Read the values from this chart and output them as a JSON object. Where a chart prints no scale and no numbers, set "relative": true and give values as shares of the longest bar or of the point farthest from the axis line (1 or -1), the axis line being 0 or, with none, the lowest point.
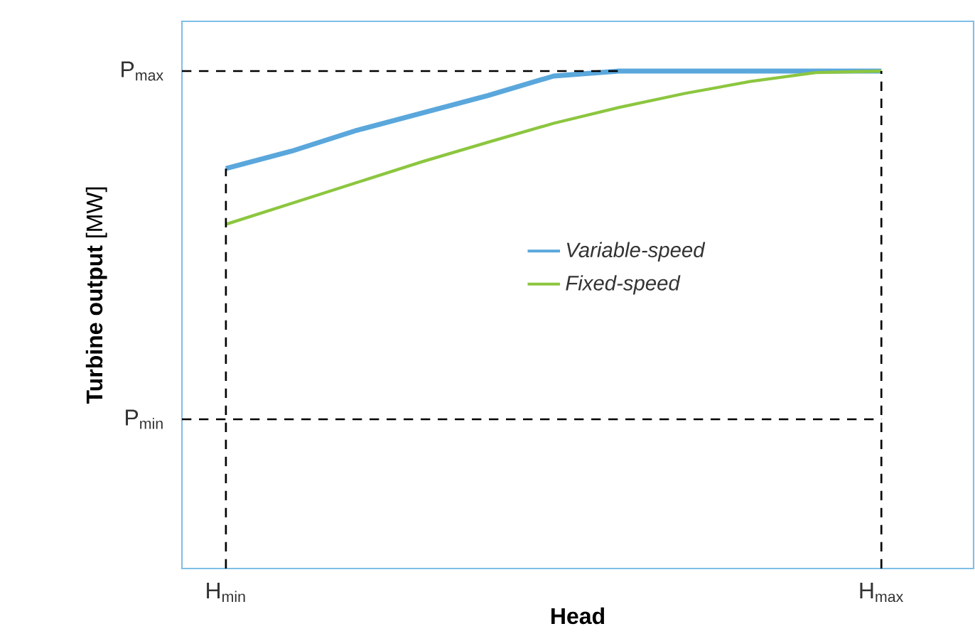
{
  "chart_data": {
    "type": "line",
    "xlabel": "Head",
    "ylabel": "**Turbine output** [MW]",
    "relative": true,
    "categories": [
      "H$_{min}$",
      null,
      null,
      null,
      null,
      null,
      null,
      null,
      null,
      null,
      "H$_{max}$"
    ],
    "series": [
      {
        "name": "Variable-speed",
        "color": "#5aa7dc",
        "values": [
          0.804,
          0.839,
          0.881,
          0.916,
          0.951,
          0.99,
          1,
          1,
          1,
          1,
          1
        ]
      },
      {
        "name": "Fixed-speed",
        "color": "#8cc63f",
        "values": [
          0.692,
          0.734,
          0.776,
          0.818,
          0.857,
          0.895,
          0.927,
          0.955,
          0.979,
          0.997,
          1
        ]
      }
    ],
    "ref_lines": [
      {
        "axis": "y",
        "value": 1,
        "label": "P$_{max}$",
        "color": "#000000",
        "line_style": "dashed"
      },
      {
        "axis": "y",
        "value": 0.3,
        "label": "P$_{min}$",
        "color": "#000000",
        "line_style": "dashed"
      },
      {
        "axis": "x",
        "value": "H$_{min}$",
        "color": "#000000",
        "line_style": "dashed"
      },
      {
        "axis": "x",
        "value": "H$_{max}$",
        "color": "#000000",
        "line_style": "dashed"
      }
    ],
    "legend": "center",
    "marker": "none",
    "line_style": "solid"
  }
}
